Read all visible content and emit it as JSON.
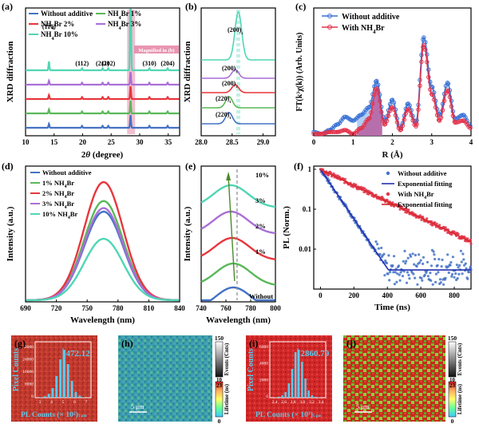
{
  "panel_labels": [
    "(a)",
    "(b)",
    "(c)",
    "(d)",
    "(e)",
    "(f)",
    "(g)",
    "(h)",
    "(i)",
    "(j)"
  ],
  "colors": {
    "without": "#4472c4",
    "nh4br_1": "#5ab85a",
    "nh4br_2": "#e8363d",
    "nh4br_3": "#a96fd6",
    "nh4br_10": "#50d6b4",
    "highlight": "#e58aa8",
    "c_without": "#3b73d6",
    "c_with": "#e3334b",
    "shade_blue": "#9ec2f2",
    "shade_red": "#b9579a",
    "f_fit": "#2330b0",
    "f_fit_red": "#d42a2a"
  },
  "chart_data": [
    {
      "id": "a",
      "type": "line",
      "xlabel": "2θ (degree)",
      "ylabel": "XRD diffraction",
      "xlim": [
        10,
        37
      ],
      "xticks": [
        10,
        15,
        20,
        25,
        30,
        35
      ],
      "legend": [
        "Without additive",
        "NH4Br 1%",
        "NH4Br 2%",
        "NH4Br 3%",
        "NH4Br 10%"
      ],
      "peak_labels": [
        {
          "text": "(110)",
          "x": 14.1
        },
        {
          "text": "(112)",
          "x": 19.9
        },
        {
          "text": "(211)",
          "x": 23.5
        },
        {
          "text": "(202)",
          "x": 24.5
        },
        {
          "text": "(310)",
          "x": 31.7
        },
        {
          "text": "(204)",
          "x": 34.9
        }
      ],
      "annotation": "Magnified in (b)",
      "highlight_range": [
        27.8,
        29.2
      ],
      "peaks": [
        14.1,
        19.9,
        23.5,
        24.5,
        28.4,
        31.7,
        34.9,
        40.6
      ],
      "series": [
        {
          "name": "Without additive",
          "offset": 0
        },
        {
          "name": "NH4Br 1%",
          "offset": 1
        },
        {
          "name": "NH4Br 2%",
          "offset": 2
        },
        {
          "name": "NH4Br 3%",
          "offset": 3
        },
        {
          "name": "NH4Br 10%",
          "offset": 4
        }
      ]
    },
    {
      "id": "b",
      "type": "line",
      "ylabel": "XRD diffraction",
      "xlim": [
        28.0,
        29.2
      ],
      "xticks": [
        28.0,
        28.5,
        29.0
      ],
      "peak_labels": [
        "(200)c",
        "(200)c",
        "(200)c",
        "(220)t",
        "(220)t"
      ],
      "series": [
        {
          "name": "NH4Br 10%",
          "peak": 28.6,
          "height": 1.0
        },
        {
          "name": "NH4Br 3%",
          "peak": 28.55,
          "height": 0.22
        },
        {
          "name": "NH4Br 2%",
          "peak": 28.55,
          "height": 0.2
        },
        {
          "name": "NH4Br 1%",
          "peak": 28.45,
          "height": 0.28
        },
        {
          "name": "Without additive",
          "peak": 28.45,
          "height": 0.28
        }
      ]
    },
    {
      "id": "c",
      "type": "line",
      "xlabel": "R (Å)",
      "ylabel": "FT(k³χ(k)) (Arb. Units)",
      "xlim": [
        0,
        4
      ],
      "xticks": [
        0,
        1,
        2,
        3,
        4
      ],
      "ylim": [
        0,
        3
      ],
      "legend": [
        "Without additive",
        "With NH4Br"
      ],
      "series": [
        {
          "name": "Without additive",
          "x": [
            0,
            0.2,
            0.4,
            0.6,
            0.8,
            1.0,
            1.2,
            1.4,
            1.6,
            1.8,
            2.0,
            2.2,
            2.4,
            2.6,
            2.8,
            3.0,
            3.2,
            3.4,
            3.6,
            3.8,
            4.0
          ],
          "y": [
            0.1,
            0.05,
            0.15,
            0.3,
            0.5,
            0.4,
            0.55,
            0.75,
            1.45,
            0.4,
            0.95,
            0.2,
            0.85,
            0.35,
            2.6,
            1.3,
            0.55,
            1.4,
            0.45,
            0.55,
            0.25
          ]
        },
        {
          "name": "With NH4Br",
          "x": [
            0,
            0.2,
            0.4,
            0.6,
            0.8,
            1.0,
            1.2,
            1.4,
            1.6,
            1.8,
            2.0,
            2.2,
            2.4,
            2.6,
            2.8,
            3.0,
            3.2,
            3.4,
            3.6,
            3.8,
            4.0
          ],
          "y": [
            0.05,
            0.05,
            0.1,
            0.1,
            0.15,
            0.05,
            0.2,
            0.45,
            1.25,
            0.3,
            0.75,
            0.15,
            0.7,
            0.25,
            2.4,
            1.1,
            0.4,
            1.2,
            0.35,
            0.4,
            0.2
          ]
        }
      ]
    },
    {
      "id": "d",
      "type": "line",
      "xlabel": "Wavelength (nm)",
      "ylabel": "Intensity (a.u.)",
      "xlim": [
        690,
        840
      ],
      "xticks": [
        690,
        720,
        750,
        780,
        810,
        840
      ],
      "legend": [
        "Without additive",
        "1% NH4Br",
        "2% NH4Br",
        "3% NH4Br",
        "10% NH4Br"
      ],
      "center": 766,
      "sigma": 19,
      "series": [
        {
          "name": "Without additive",
          "height": 0.75
        },
        {
          "name": "1% NH4Br",
          "height": 0.84
        },
        {
          "name": "2% NH4Br",
          "height": 1.0
        },
        {
          "name": "3% NH4Br",
          "height": 0.78
        },
        {
          "name": "10% NH4Br",
          "height": 0.52
        }
      ]
    },
    {
      "id": "e",
      "type": "line",
      "xlabel": "Wavelength (nm)",
      "ylabel": "Intensity (a.u.)",
      "xlim": [
        740,
        800
      ],
      "xticks": [
        740,
        760,
        780,
        800
      ],
      "curve_labels": [
        "10%",
        "3%",
        "2%",
        "1%",
        "Without"
      ],
      "series": [
        {
          "name": "Without",
          "offset": 0,
          "center": 766
        },
        {
          "name": "1%",
          "offset": 1,
          "center": 766
        },
        {
          "name": "2%",
          "offset": 2,
          "center": 765
        },
        {
          "name": "3%",
          "offset": 3,
          "center": 764
        },
        {
          "name": "10%",
          "offset": 4,
          "center": 764
        }
      ],
      "dashed_x": 769
    },
    {
      "id": "f",
      "type": "scatter",
      "xlabel": "Time (ns)",
      "ylabel": "PL (Norm.)",
      "xlim": [
        -40,
        900
      ],
      "xticks": [
        0,
        200,
        400,
        600,
        800
      ],
      "yscale": "log",
      "ylim": [
        0.001,
        1
      ],
      "yticks": [
        1,
        0.1,
        0.01
      ],
      "yticklabels": [
        "1",
        "0.1",
        "0.01"
      ],
      "legend": [
        "Without additive",
        "Exponential fitting",
        "With NH4Br",
        "Exponential fitting"
      ],
      "series": [
        {
          "name": "Without additive",
          "tau": 70,
          "noise_floor": 0.003
        },
        {
          "name": "With NH4Br",
          "tau": 215,
          "noise_floor": 0.0018
        }
      ]
    }
  ],
  "maps": [
    {
      "id": "g",
      "value": "472.12",
      "hist_yticks": [
        "32000",
        "24000",
        "16000",
        "8000",
        "0"
      ],
      "hist_xticks": [
        "3",
        "4",
        "5",
        "6",
        "7"
      ],
      "ylabel": "Pixel Counts",
      "xlabel": "PL Counts (× 10²)",
      "xlabel_tail": "5 μm",
      "hist_values": [
        0.01,
        0.03,
        0.08,
        0.2,
        0.45,
        0.8,
        1.0,
        0.7,
        0.35,
        0.12,
        0.04,
        0.01
      ]
    },
    {
      "id": "h",
      "scalebar": "5 μm",
      "cb_top": "150",
      "cb_mid_top": "10",
      "cb_mid_bot": "23",
      "cb_bot": "0",
      "cb_label_top": "Events (Cnts)",
      "cb_label_bot": "Lifetime (ns)"
    },
    {
      "id": "i",
      "value": "2860.79",
      "hist_yticks": [
        "6000",
        "4000",
        "2000",
        "0"
      ],
      "hist_xticks": [
        "2.4",
        "2.6",
        "2.8",
        "3.0",
        "3.2",
        "3.4"
      ],
      "ylabel": "Pixel Counts",
      "xlabel": "PL Counts (× 10³)",
      "xlabel_tail": "5 μm",
      "hist_values": [
        0.01,
        0.02,
        0.05,
        0.12,
        0.3,
        0.6,
        0.95,
        1.0,
        0.75,
        0.4,
        0.15,
        0.05,
        0.02,
        0.01
      ]
    },
    {
      "id": "j",
      "scalebar": "5 μm",
      "cb_top": "150",
      "cb_mid_top": "10",
      "cb_mid_bot": "23",
      "cb_bot": "0",
      "cb_label_top": "Events (Cnts)",
      "cb_label_bot": "Lifetime (ns)"
    }
  ]
}
